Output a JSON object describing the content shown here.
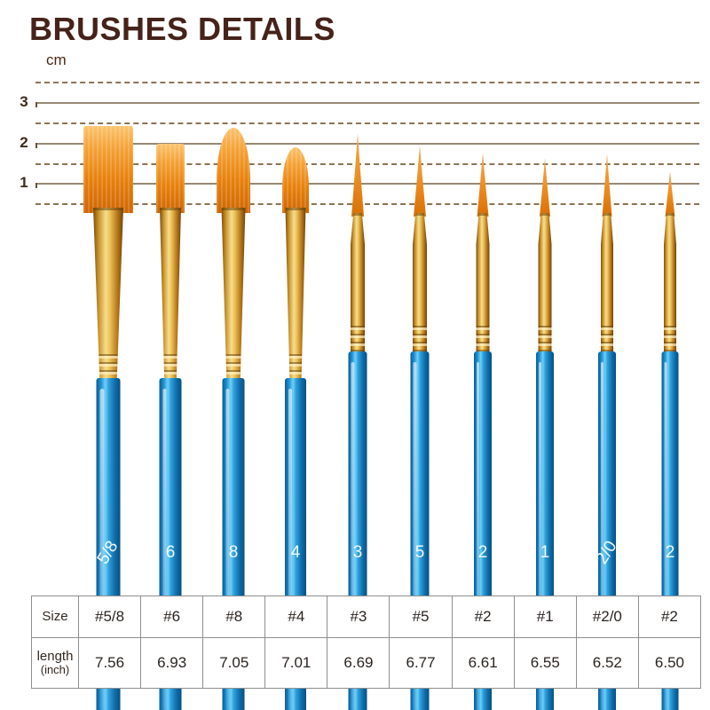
{
  "title": "BRUSHES DETAILS",
  "ruler": {
    "unit": "cm",
    "labels": [
      "3",
      "2",
      "1"
    ]
  },
  "brushes": [
    {
      "label": "5/8",
      "size": "#5/8",
      "shape": "flat"
    },
    {
      "label": "6",
      "size": "#6",
      "shape": "flat"
    },
    {
      "label": "8",
      "size": "#8",
      "shape": "filbert"
    },
    {
      "label": "4",
      "size": "#4",
      "shape": "filbert"
    },
    {
      "label": "3",
      "size": "#3",
      "shape": "round"
    },
    {
      "label": "5",
      "size": "#5",
      "shape": "round"
    },
    {
      "label": "2",
      "size": "#2",
      "shape": "round"
    },
    {
      "label": "1",
      "size": "#1",
      "shape": "round"
    },
    {
      "label": "2/0",
      "size": "#2/0",
      "shape": "round"
    },
    {
      "label": "2",
      "size": "#2",
      "shape": "round"
    }
  ],
  "table": {
    "size_header": "Size",
    "length_header": "length",
    "length_unit": "(inch)",
    "sizes": [
      "#5/8",
      "#6",
      "#8",
      "#4",
      "#3",
      "#5",
      "#2",
      "#1",
      "#2/0",
      "#2"
    ],
    "lengths_inch": [
      "7.56",
      "6.93",
      "7.05",
      "7.01",
      "6.69",
      "6.77",
      "6.61",
      "6.55",
      "6.52",
      "6.50"
    ]
  },
  "colors": {
    "title_brown": "#45231a",
    "handle_blue": "#1b87c9",
    "ferrule_gold": "#e3b44a",
    "bristle_orange": "#ef9227",
    "ruler_line": "#8d7354",
    "table_border": "#8f8f8f"
  }
}
